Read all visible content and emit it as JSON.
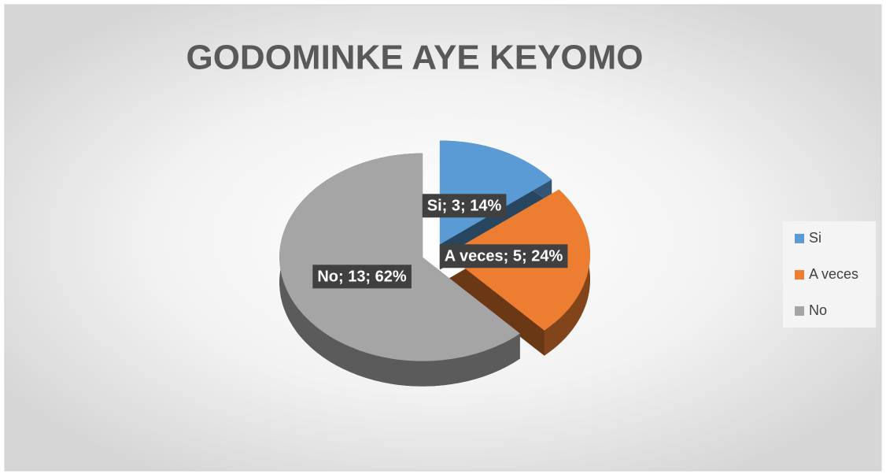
{
  "chart_data": {
    "type": "pie",
    "title": "GODOMINKE AYE KEYOMO",
    "categories": [
      "Si",
      "A veces",
      "No"
    ],
    "values": [
      3,
      5,
      13
    ],
    "value_labels": [
      "Si; 3; 14%",
      "A veces; 5; 24%",
      "No; 13; 62%"
    ],
    "colors": [
      "#5b9bd5",
      "#ed7d31",
      "#a5a5a5"
    ],
    "legend": "right"
  }
}
